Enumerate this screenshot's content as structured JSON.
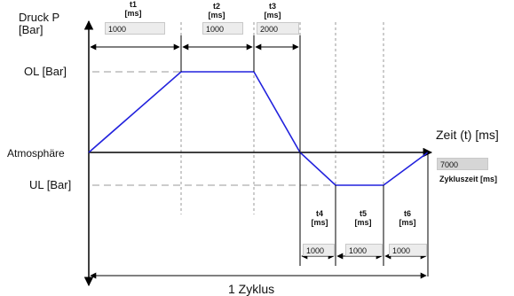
{
  "y_axis_label": [
    "Druck P",
    "[Bar]"
  ],
  "x_axis_label": "Zeit (t) [ms]",
  "levels": {
    "ol": "OL [Bar]",
    "atm": "Atmosphäre",
    "ul": "UL [Bar]"
  },
  "phases": [
    {
      "name": "t1",
      "unit": "[ms]",
      "value": "1000"
    },
    {
      "name": "t2",
      "unit": "[ms]",
      "value": "1000"
    },
    {
      "name": "t3",
      "unit": "[ms]",
      "value": "2000"
    },
    {
      "name": "t4",
      "unit": "[ms]",
      "value": "1000"
    },
    {
      "name": "t5",
      "unit": "[ms]",
      "value": "1000"
    },
    {
      "name": "t6",
      "unit": "[ms]",
      "value": "1000"
    }
  ],
  "cycle_time": {
    "value": "7000",
    "label": "Zykluszeit [ms]"
  },
  "cycle_label": "1 Zyklus",
  "colors": {
    "pressure_curve": "#2222dd",
    "axes": "#000000",
    "guides": "#999999"
  }
}
